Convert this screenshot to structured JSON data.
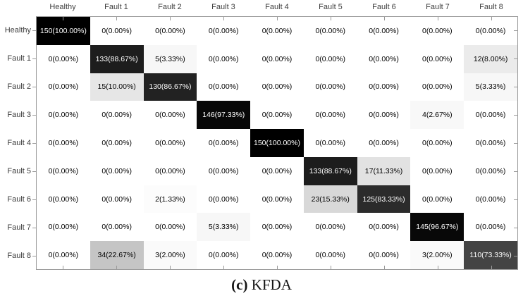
{
  "figure": {
    "caption": {
      "prefix": "(c)",
      "label": "KFDA"
    }
  },
  "chart_data": {
    "type": "heatmap",
    "subtype": "confusion-matrix",
    "title": "",
    "xlabel": "",
    "ylabel": "",
    "caption": "(c) KFDA",
    "classes": [
      "Healthy",
      "Fault 1",
      "Fault 2",
      "Fault 3",
      "Fault 4",
      "Fault 5",
      "Fault 6",
      "Fault 7",
      "Fault 8"
    ],
    "cell_format": "count(percent%)",
    "counts": [
      [
        150,
        0,
        0,
        0,
        0,
        0,
        0,
        0,
        0
      ],
      [
        0,
        133,
        5,
        0,
        0,
        0,
        0,
        0,
        12
      ],
      [
        0,
        15,
        130,
        0,
        0,
        0,
        0,
        0,
        5
      ],
      [
        0,
        0,
        0,
        146,
        0,
        0,
        0,
        4,
        0
      ],
      [
        0,
        0,
        0,
        0,
        150,
        0,
        0,
        0,
        0
      ],
      [
        0,
        0,
        0,
        0,
        0,
        133,
        17,
        0,
        0
      ],
      [
        0,
        0,
        2,
        0,
        0,
        23,
        125,
        0,
        0
      ],
      [
        0,
        0,
        0,
        5,
        0,
        0,
        0,
        145,
        0
      ],
      [
        0,
        34,
        3,
        0,
        0,
        0,
        0,
        3,
        110
      ]
    ],
    "percents": [
      [
        100.0,
        0.0,
        0.0,
        0.0,
        0.0,
        0.0,
        0.0,
        0.0,
        0.0
      ],
      [
        0.0,
        88.67,
        3.33,
        0.0,
        0.0,
        0.0,
        0.0,
        0.0,
        8.0
      ],
      [
        0.0,
        10.0,
        86.67,
        0.0,
        0.0,
        0.0,
        0.0,
        0.0,
        3.33
      ],
      [
        0.0,
        0.0,
        0.0,
        97.33,
        0.0,
        0.0,
        0.0,
        2.67,
        0.0
      ],
      [
        0.0,
        0.0,
        0.0,
        0.0,
        100.0,
        0.0,
        0.0,
        0.0,
        0.0
      ],
      [
        0.0,
        0.0,
        0.0,
        0.0,
        0.0,
        88.67,
        11.33,
        0.0,
        0.0
      ],
      [
        0.0,
        0.0,
        1.33,
        0.0,
        0.0,
        15.33,
        83.33,
        0.0,
        0.0
      ],
      [
        0.0,
        0.0,
        0.0,
        3.33,
        0.0,
        0.0,
        0.0,
        96.67,
        0.0
      ],
      [
        0.0,
        22.67,
        2.0,
        0.0,
        0.0,
        0.0,
        0.0,
        2.0,
        73.33
      ]
    ],
    "colormap": {
      "min_percent_color": "#ffffff",
      "max_percent_color": "#000000",
      "dark_cell_text": "#ffffff",
      "light_cell_text": "#000000"
    },
    "layout_hints": {
      "x_ticks_position": "top",
      "grid": false,
      "legend": false
    }
  }
}
